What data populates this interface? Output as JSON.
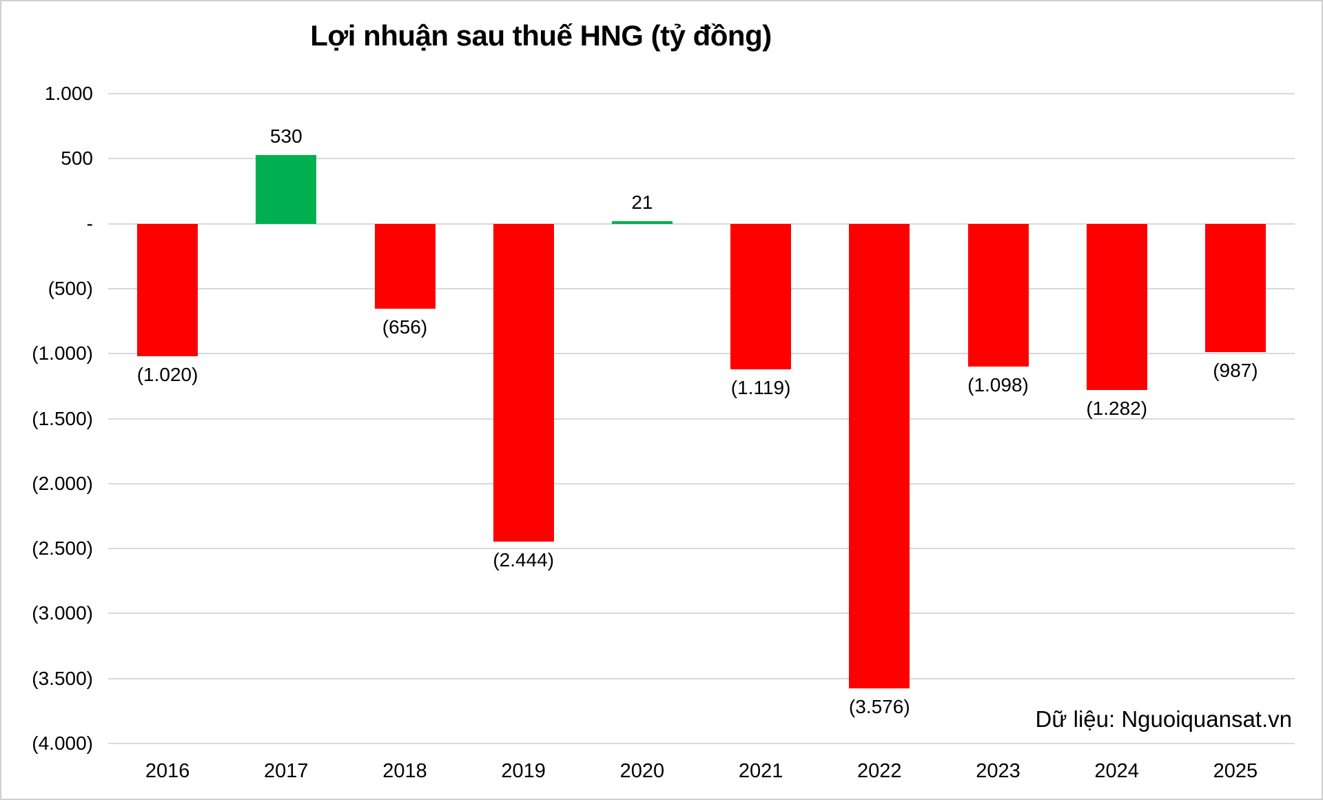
{
  "chart_data": {
    "type": "bar",
    "title": "Lợi nhuận sau thuế HNG (tỷ đồng)",
    "source": "Dữ liệu: Nguoiquansat.vn",
    "categories": [
      "2016",
      "2017",
      "2018",
      "2019",
      "2020",
      "2021",
      "2022",
      "2023",
      "2024",
      "2025"
    ],
    "values": [
      -1020,
      530,
      -656,
      -2444,
      21,
      -1119,
      -3576,
      -1098,
      -1282,
      -987
    ],
    "bar_labels": [
      "(1.020)",
      "530",
      "(656)",
      "(2.444)",
      "21",
      "(1.119)",
      "(3.576)",
      "(1.098)",
      "(1.282)",
      "(987)"
    ],
    "y_ticks": [
      {
        "value": 1000,
        "label": "1.000"
      },
      {
        "value": 500,
        "label": "500"
      },
      {
        "value": 0,
        "label": "-"
      },
      {
        "value": -500,
        "label": "(500)"
      },
      {
        "value": -1000,
        "label": "(1.000)"
      },
      {
        "value": -1500,
        "label": "(1.500)"
      },
      {
        "value": -2000,
        "label": "(2.000)"
      },
      {
        "value": -2500,
        "label": "(2.500)"
      },
      {
        "value": -3000,
        "label": "(3.000)"
      },
      {
        "value": -3500,
        "label": "(3.500)"
      },
      {
        "value": -4000,
        "label": "(4.000)"
      }
    ],
    "ylim": [
      -4000,
      1000
    ],
    "grid": true,
    "legend": false,
    "colors": {
      "positive": "#00B050",
      "negative": "#FF0000",
      "gridline": "#d9d9d9",
      "text": "#000000"
    }
  }
}
